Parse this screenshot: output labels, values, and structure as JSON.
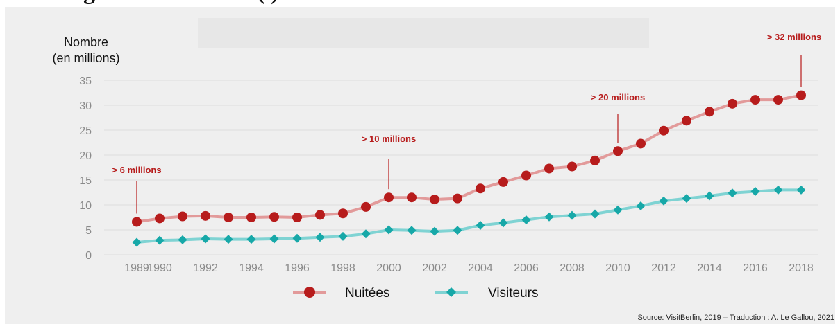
{
  "header_fragment": "gu t t vs t s ts t ts ( )",
  "colors": {
    "nuitees_line": "#e29a9a",
    "nuitees_marker": "#b71c1c",
    "visiteurs_line": "#7fd3d3",
    "visiteurs_marker": "#17a8a8",
    "annotation": "#b71c1c",
    "grid": "#dcdcdc",
    "panel": "#efefef"
  },
  "source": "Source: VisitBerlin, 2019 – Traduction : A. Le Gallou, 2021",
  "chart_data": {
    "type": "line",
    "ylabel": "Nombre\n(en millions)",
    "ylim": [
      0,
      35
    ],
    "yticks": [
      0,
      5,
      10,
      15,
      20,
      25,
      30,
      35
    ],
    "xlim": [
      1989,
      2018
    ],
    "xticks": [
      1989,
      1990,
      1992,
      1994,
      1996,
      1998,
      2000,
      2002,
      2004,
      2006,
      2008,
      2010,
      2012,
      2014,
      2016,
      2018
    ],
    "grid": true,
    "legend": "bottom-center",
    "x": [
      1989,
      1990,
      1991,
      1992,
      1993,
      1994,
      1995,
      1996,
      1997,
      1998,
      1999,
      2000,
      2001,
      2002,
      2003,
      2004,
      2005,
      2006,
      2007,
      2008,
      2009,
      2010,
      2011,
      2012,
      2013,
      2014,
      2015,
      2016,
      2017,
      2018
    ],
    "series": [
      {
        "name": "Nuitées",
        "marker": "circle",
        "values": [
          6.6,
          7.3,
          7.7,
          7.8,
          7.5,
          7.5,
          7.6,
          7.5,
          8.0,
          8.3,
          9.6,
          11.5,
          11.5,
          11.1,
          11.3,
          13.3,
          14.6,
          15.9,
          17.3,
          17.7,
          18.9,
          20.8,
          22.3,
          24.9,
          26.9,
          28.7,
          30.3,
          31.1,
          31.1,
          32.0
        ]
      },
      {
        "name": "Visiteurs",
        "marker": "diamond",
        "values": [
          2.5,
          2.9,
          3.0,
          3.2,
          3.1,
          3.1,
          3.2,
          3.3,
          3.5,
          3.7,
          4.2,
          5.0,
          4.9,
          4.7,
          4.9,
          5.9,
          6.4,
          7.0,
          7.6,
          7.9,
          8.2,
          9.0,
          9.8,
          10.8,
          11.3,
          11.8,
          12.4,
          12.7,
          13.0,
          13.0
        ]
      }
    ],
    "annotations": [
      {
        "text": "> 6 millions",
        "x": 1989
      },
      {
        "text": "> 10 millions",
        "x": 2000
      },
      {
        "text": "> 20 millions",
        "x": 2010
      },
      {
        "text": "> 32 millions",
        "x": 2018
      }
    ]
  }
}
